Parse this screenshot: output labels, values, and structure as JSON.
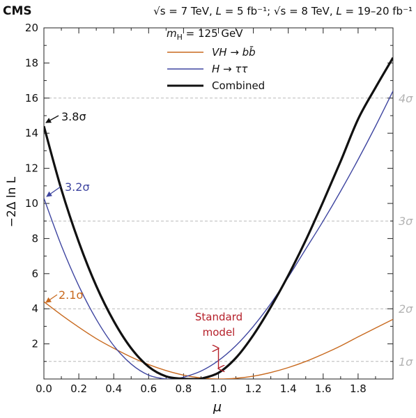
{
  "chart_data": {
    "type": "line",
    "experiment_label": "CMS",
    "header": {
      "sqrt_s": "√s",
      "energy1": " = 7 TeV, ",
      "lumi_sym": "L",
      "lumi1": " = 5 fb⁻¹; ",
      "energy2": " = 8 TeV, ",
      "lumi2": " = 19–20 fb⁻¹"
    },
    "xlabel": "μ",
    "ylabel": "−2Δ ln L",
    "xlim": [
      0,
      2.0
    ],
    "ylim": [
      0,
      20
    ],
    "x_ticks": [
      "0.0",
      "0.2",
      "0.4",
      "0.6",
      "0.8",
      "1.0",
      "1.2",
      "1.4",
      "1.6",
      "1.8"
    ],
    "x_tick_values": [
      0.0,
      0.2,
      0.4,
      0.6,
      0.8,
      1.0,
      1.2,
      1.4,
      1.6,
      1.8
    ],
    "y_ticks": [
      "2",
      "4",
      "6",
      "8",
      "10",
      "12",
      "14",
      "16",
      "18",
      "20"
    ],
    "y_tick_values": [
      2,
      4,
      6,
      8,
      10,
      12,
      14,
      16,
      18,
      20
    ],
    "sigma_lines": [
      {
        "label": "1σ",
        "y": 1
      },
      {
        "label": "2σ",
        "y": 4
      },
      {
        "label": "3σ",
        "y": 9
      },
      {
        "label": "4σ",
        "y": 16
      }
    ],
    "legend": {
      "header_m": "m",
      "header_sub": "H",
      "header_rest": " = 125 GeV",
      "entries": [
        {
          "label_part1": "VH",
          "label_arrow": " → ",
          "label_part2": "bb̄",
          "color": "#c8691e"
        },
        {
          "label_part1": "H",
          "label_arrow": " → ",
          "label_part2": "ττ",
          "color": "#3e45a0"
        },
        {
          "label_part1": "",
          "label_arrow": "",
          "label_part2": "Combined",
          "color": "#111111"
        }
      ]
    },
    "series": [
      {
        "name": "VH → bb̄",
        "color": "#c8691e",
        "x": [
          0.0,
          0.1,
          0.2,
          0.3,
          0.4,
          0.5,
          0.6,
          0.7,
          0.8,
          0.9,
          1.0,
          1.1,
          1.2,
          1.3,
          1.4,
          1.5,
          1.6,
          1.7,
          1.8,
          1.9,
          2.0
        ],
        "y": [
          4.4,
          3.65,
          2.95,
          2.3,
          1.75,
          1.25,
          0.82,
          0.48,
          0.22,
          0.06,
          0.0,
          0.04,
          0.16,
          0.37,
          0.65,
          1.0,
          1.42,
          1.88,
          2.4,
          2.9,
          3.4
        ]
      },
      {
        "name": "H → ττ",
        "color": "#3e45a0",
        "x": [
          0.0,
          0.1,
          0.2,
          0.3,
          0.4,
          0.5,
          0.6,
          0.7,
          0.75,
          0.8,
          0.9,
          1.0,
          1.1,
          1.2,
          1.3,
          1.4,
          1.5,
          1.6,
          1.7,
          1.8,
          1.9,
          2.0
        ],
        "y": [
          10.3,
          7.6,
          5.3,
          3.4,
          1.9,
          0.85,
          0.22,
          0.0,
          0.02,
          0.1,
          0.45,
          1.05,
          1.9,
          3.0,
          4.3,
          5.8,
          7.4,
          9.0,
          10.7,
          12.5,
          14.4,
          16.4
        ]
      },
      {
        "name": "Combined",
        "color": "#111111",
        "x": [
          0.0,
          0.1,
          0.2,
          0.3,
          0.4,
          0.5,
          0.6,
          0.7,
          0.8,
          0.87,
          0.9,
          1.0,
          1.1,
          1.2,
          1.3,
          1.4,
          1.5,
          1.6,
          1.7,
          1.8,
          1.9,
          2.0
        ],
        "y": [
          14.4,
          10.8,
          7.8,
          5.3,
          3.3,
          1.75,
          0.7,
          0.15,
          0.01,
          0.0,
          0.02,
          0.35,
          1.2,
          2.5,
          4.1,
          5.9,
          7.9,
          10.1,
          12.4,
          14.8,
          16.6,
          18.3
        ]
      }
    ],
    "annotations": [
      {
        "label": "3.8σ",
        "color": "#111111",
        "x": 0.0,
        "y": 14.4
      },
      {
        "label": "3.2σ",
        "color": "#3e45a0",
        "x": 0.0,
        "y": 10.3
      },
      {
        "label": "2.1σ",
        "color": "#c8691e",
        "x": 0.0,
        "y": 4.4
      }
    ],
    "standard_model": {
      "line1": "Standard",
      "line2": "model",
      "color": "#b5202a",
      "x": 1.0,
      "y_top": 1.75,
      "y_bottom": 0.6
    },
    "grid": false
  }
}
